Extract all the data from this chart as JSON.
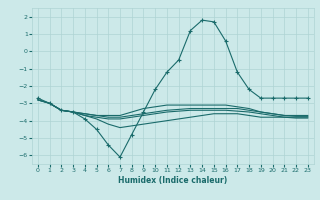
{
  "xlabel": "Humidex (Indice chaleur)",
  "ylabel": "",
  "bg_color": "#cce9e9",
  "grid_color": "#afd4d4",
  "line_color": "#1a6b6b",
  "xlim": [
    -0.5,
    23.5
  ],
  "ylim": [
    -6.5,
    2.5
  ],
  "xticks": [
    0,
    1,
    2,
    3,
    4,
    5,
    6,
    7,
    8,
    9,
    10,
    11,
    12,
    13,
    14,
    15,
    16,
    17,
    18,
    19,
    20,
    21,
    22,
    23
  ],
  "yticks": [
    -6,
    -5,
    -4,
    -3,
    -2,
    -1,
    0,
    1,
    2
  ],
  "line1_x": [
    0,
    1,
    2,
    3,
    4,
    5,
    6,
    7,
    8,
    9,
    10,
    11,
    12,
    13,
    14,
    15,
    16,
    17,
    18,
    19,
    20,
    21,
    22,
    23
  ],
  "line1_y": [
    -2.7,
    -3.0,
    -3.4,
    -3.5,
    -3.9,
    -4.5,
    -5.4,
    -6.1,
    -4.8,
    -3.5,
    -2.2,
    -1.2,
    -0.5,
    1.2,
    1.8,
    1.7,
    0.6,
    -1.2,
    -2.2,
    -2.7,
    -2.7,
    -2.7,
    -2.7,
    -2.7
  ],
  "line2_x": [
    0,
    1,
    2,
    3,
    4,
    5,
    6,
    7,
    8,
    9,
    10,
    11,
    12,
    13,
    14,
    15,
    16,
    17,
    18,
    19,
    20,
    21,
    22,
    23
  ],
  "line2_y": [
    -2.8,
    -3.0,
    -3.4,
    -3.5,
    -3.6,
    -3.7,
    -3.7,
    -3.7,
    -3.5,
    -3.3,
    -3.2,
    -3.1,
    -3.1,
    -3.1,
    -3.1,
    -3.1,
    -3.1,
    -3.2,
    -3.3,
    -3.5,
    -3.6,
    -3.7,
    -3.7,
    -3.7
  ],
  "line3_x": [
    0,
    1,
    2,
    3,
    4,
    5,
    6,
    7,
    8,
    9,
    10,
    11,
    12,
    13,
    14,
    15,
    16,
    17,
    18,
    19,
    20,
    21,
    22,
    23
  ],
  "line3_y": [
    -2.8,
    -3.0,
    -3.4,
    -3.5,
    -3.6,
    -3.7,
    -3.8,
    -3.8,
    -3.7,
    -3.6,
    -3.5,
    -3.4,
    -3.35,
    -3.3,
    -3.3,
    -3.3,
    -3.3,
    -3.3,
    -3.4,
    -3.5,
    -3.6,
    -3.7,
    -3.75,
    -3.75
  ],
  "line4_x": [
    0,
    1,
    2,
    3,
    4,
    5,
    6,
    7,
    8,
    9,
    10,
    11,
    12,
    13,
    14,
    15,
    16,
    17,
    18,
    19,
    20,
    21,
    22,
    23
  ],
  "line4_y": [
    -2.8,
    -3.0,
    -3.4,
    -3.5,
    -3.7,
    -3.8,
    -3.9,
    -3.9,
    -3.8,
    -3.7,
    -3.6,
    -3.5,
    -3.45,
    -3.4,
    -3.4,
    -3.4,
    -3.4,
    -3.45,
    -3.5,
    -3.6,
    -3.7,
    -3.8,
    -3.85,
    -3.85
  ],
  "line5_x": [
    1,
    2,
    3,
    4,
    5,
    6,
    7,
    8,
    9,
    10,
    11,
    12,
    13,
    14,
    15,
    16,
    17,
    18,
    19,
    20,
    21,
    22,
    23
  ],
  "line5_y": [
    -3.0,
    -3.4,
    -3.5,
    -3.7,
    -3.9,
    -4.2,
    -4.4,
    -4.3,
    -4.2,
    -4.1,
    -4.0,
    -3.9,
    -3.8,
    -3.7,
    -3.6,
    -3.6,
    -3.6,
    -3.7,
    -3.8,
    -3.8,
    -3.8,
    -3.8,
    -3.8
  ]
}
